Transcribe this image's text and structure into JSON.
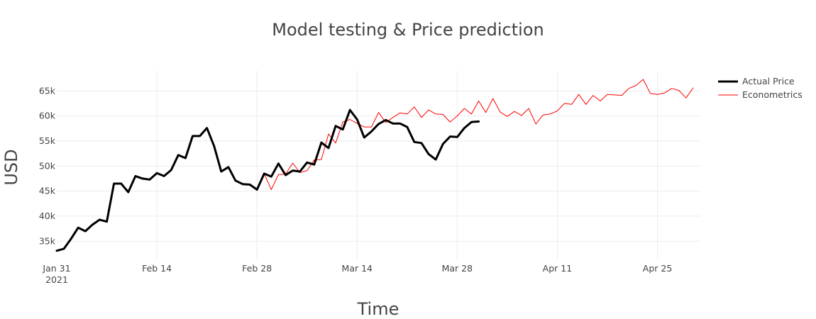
{
  "chart_data": {
    "type": "line",
    "title": "Model testing & Price prediction",
    "xlabel": "Time",
    "ylabel": "USD",
    "x_start": "2021-01-31",
    "xlim": [
      "2021-01-31",
      "2021-05-01"
    ],
    "ylim": [
      31500,
      69000
    ],
    "grid": true,
    "legend_position": "top-right",
    "x_ticks": [
      {
        "date": "2021-01-31",
        "label": "Jan 31",
        "sublabel": "2021"
      },
      {
        "date": "2021-02-14",
        "label": "Feb 14"
      },
      {
        "date": "2021-02-28",
        "label": "Feb 28"
      },
      {
        "date": "2021-03-14",
        "label": "Mar 14"
      },
      {
        "date": "2021-03-28",
        "label": "Mar 28"
      },
      {
        "date": "2021-04-11",
        "label": "Apr 11"
      },
      {
        "date": "2021-04-25",
        "label": "Apr 25"
      }
    ],
    "y_ticks": [
      {
        "value": 35000,
        "label": "35k"
      },
      {
        "value": 40000,
        "label": "40k"
      },
      {
        "value": 45000,
        "label": "45k"
      },
      {
        "value": 50000,
        "label": "50k"
      },
      {
        "value": 55000,
        "label": "55k"
      },
      {
        "value": 60000,
        "label": "60k"
      },
      {
        "value": 65000,
        "label": "65k"
      }
    ],
    "series": [
      {
        "name": "Actual Price",
        "color": "#000000",
        "values": [
          33100,
          33500,
          35500,
          37700,
          37000,
          38300,
          39300,
          38900,
          46500,
          46500,
          44800,
          48000,
          47500,
          47300,
          48600,
          48000,
          49200,
          52200,
          51600,
          56000,
          56000,
          57600,
          54000,
          48900,
          49800,
          47100,
          46400,
          46300,
          45300,
          48500,
          47900,
          50500,
          48200,
          49100,
          48900,
          50700,
          50300,
          54700,
          53600,
          58000,
          57300,
          61200,
          59300,
          55700,
          56900,
          58400,
          59200,
          58500,
          58500,
          57800,
          54800,
          54600,
          52400,
          51300,
          54400,
          55900,
          55800,
          57600,
          58800,
          58900
        ]
      },
      {
        "name": "Econometrics",
        "color": "#ff0000",
        "values": [
          33100,
          33500,
          35500,
          37700,
          37000,
          38300,
          39300,
          38900,
          46500,
          46500,
          44800,
          48000,
          47500,
          47300,
          48600,
          48000,
          49200,
          52200,
          51600,
          56000,
          56000,
          57600,
          54000,
          48900,
          49800,
          47100,
          46400,
          46300,
          45300,
          48500,
          45300,
          48300,
          48400,
          50600,
          48700,
          49100,
          51200,
          51300,
          56400,
          54600,
          58800,
          59300,
          58500,
          57800,
          57800,
          60700,
          58700,
          59700,
          60600,
          60400,
          61800,
          59700,
          61200,
          60400,
          60300,
          58800,
          60000,
          61500,
          60400,
          63000,
          60700,
          63500,
          60800,
          59900,
          60900,
          60100,
          61500,
          58400,
          60200,
          60400,
          61000,
          62500,
          62300,
          64300,
          62300,
          64100,
          63000,
          64300,
          64200,
          64100,
          65500,
          66100,
          67300,
          64500,
          64300,
          64600,
          65500,
          65100,
          63600,
          65600
        ]
      }
    ]
  }
}
